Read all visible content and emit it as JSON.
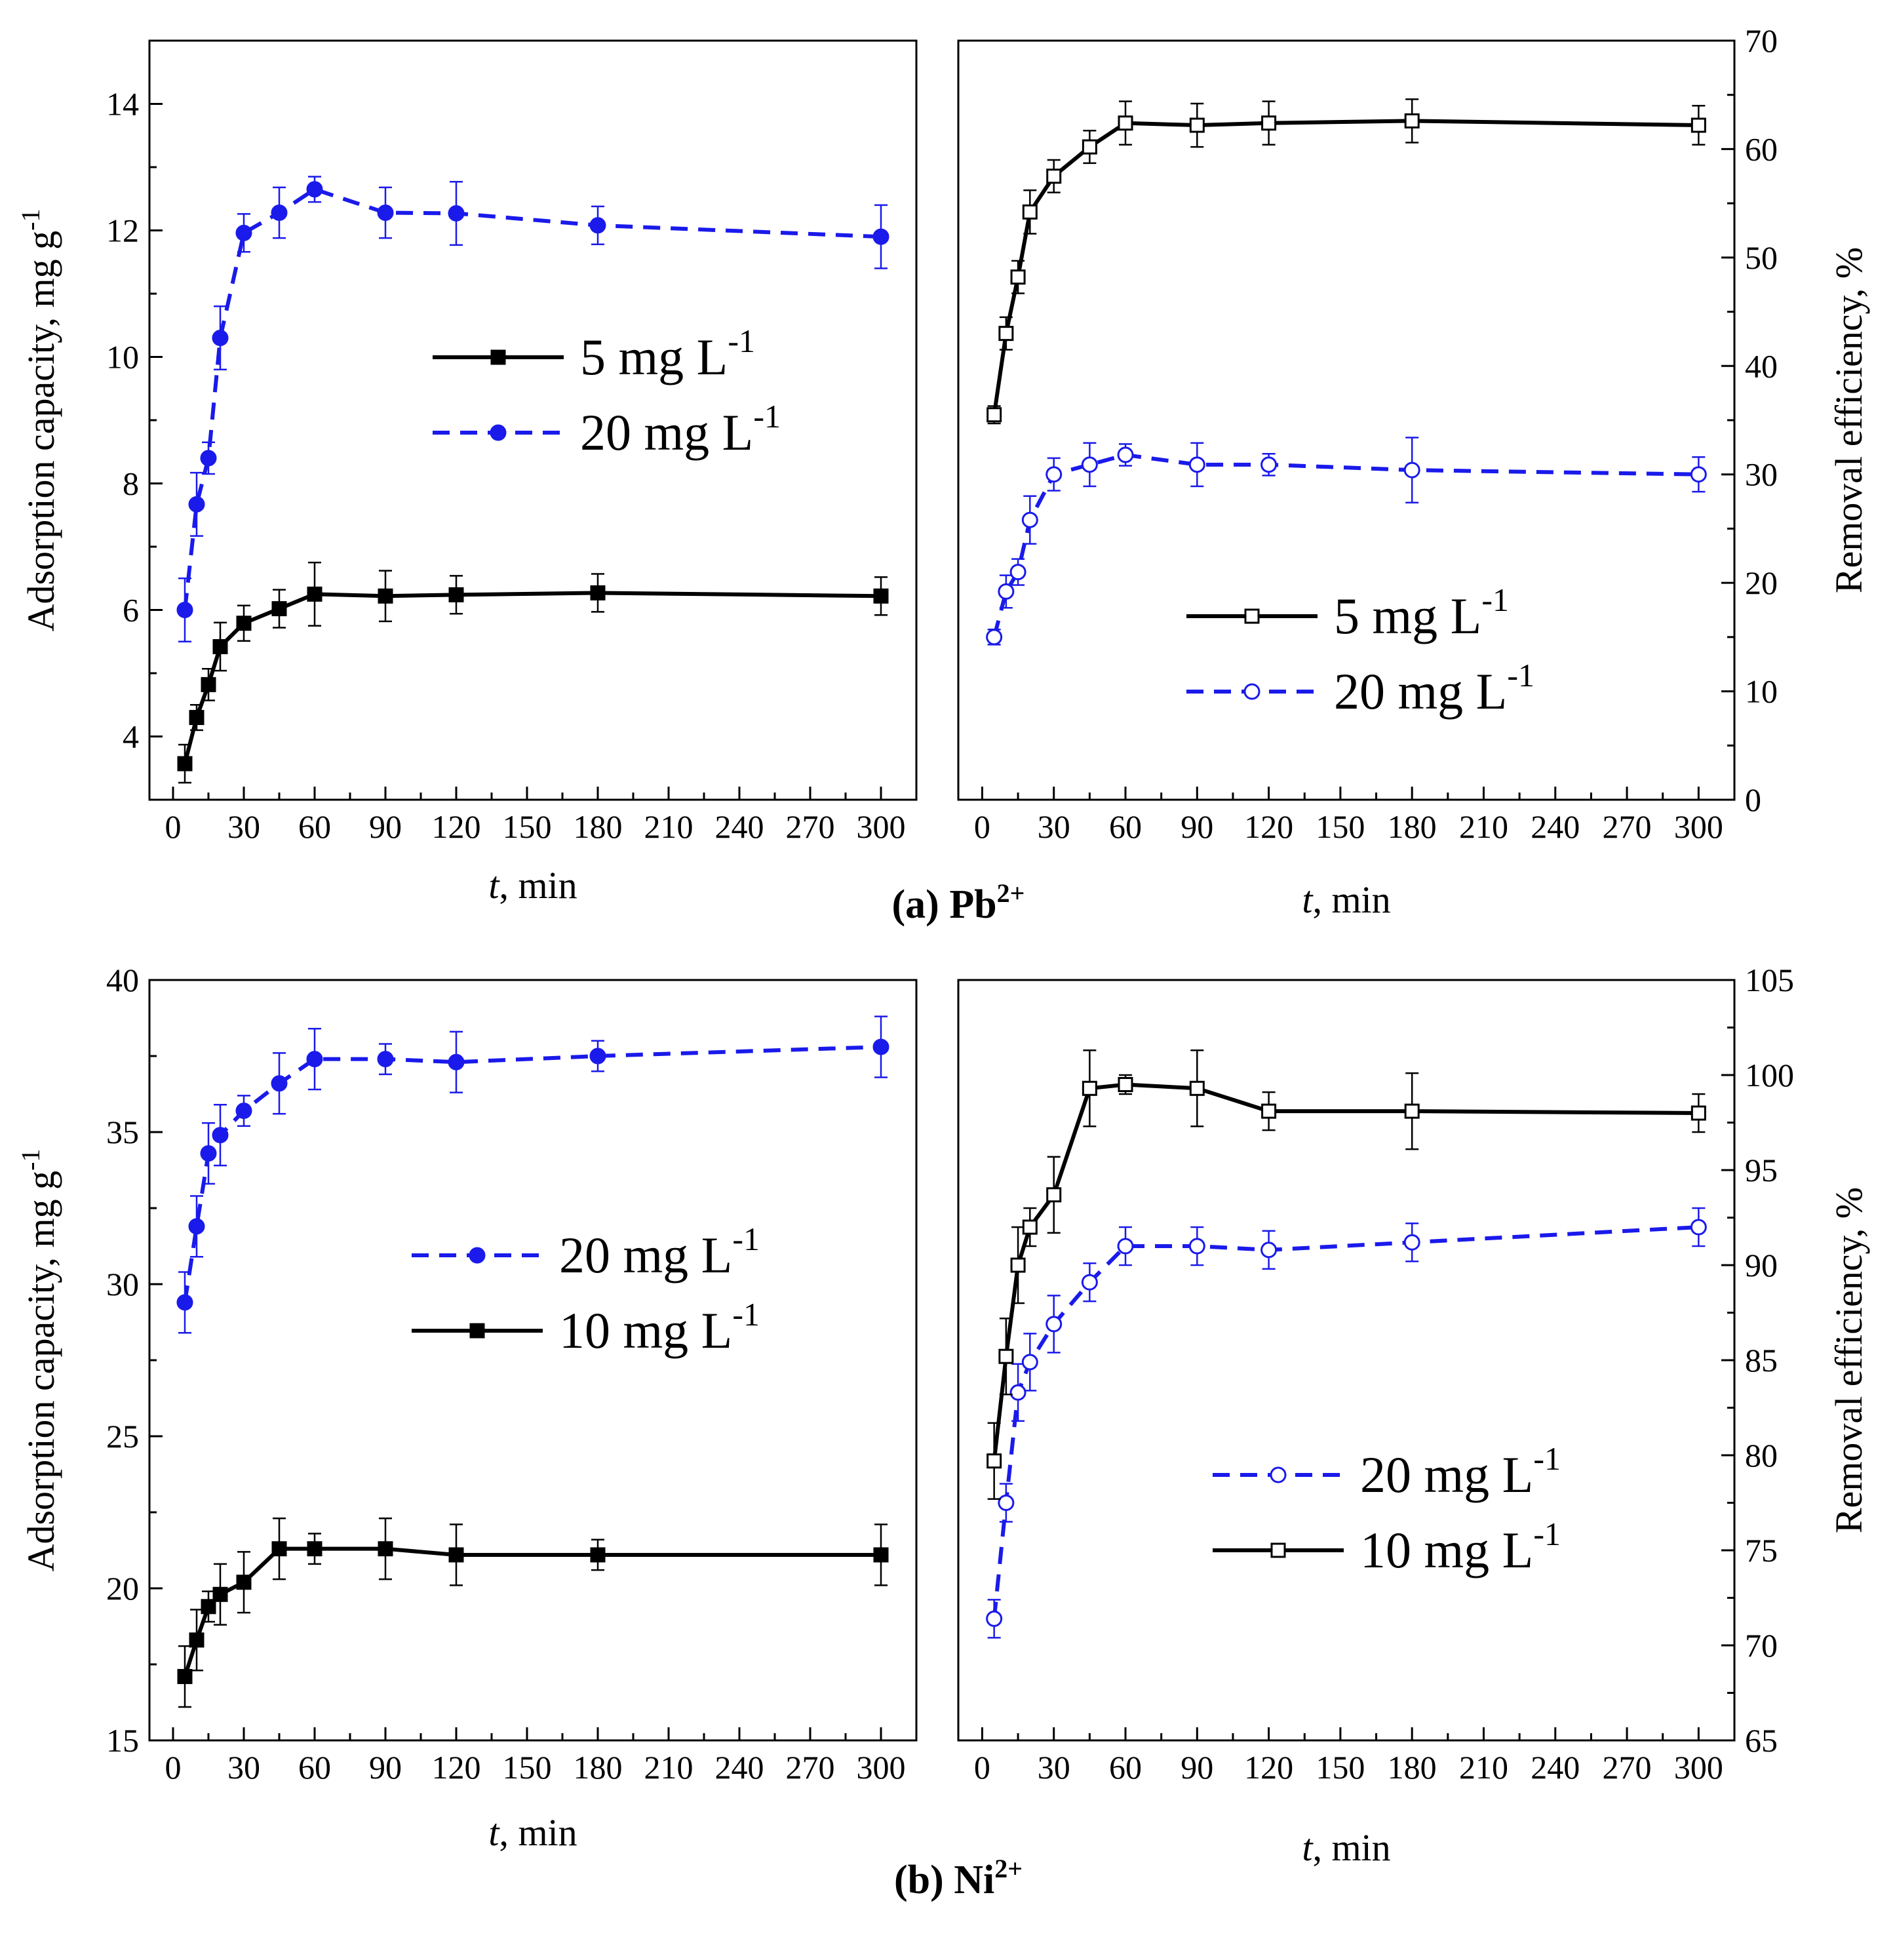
{
  "figure": {
    "captions": [
      {
        "label": "(a)",
        "ion": "Pb",
        "charge": "2+"
      },
      {
        "label": "(b)",
        "ion": "Ni",
        "charge": "2+"
      }
    ],
    "colors": {
      "black": "#000000",
      "blue": "#1a1aeb"
    }
  },
  "chart_data": [
    {
      "id": "pb-capacity",
      "type": "line",
      "row": "a",
      "side": "left",
      "xlabel_italic": "t",
      "xlabel_rest": ", min",
      "ylabel": "Adsorption capacity, mg g",
      "ylabel_sup": "-1",
      "y_axis_side": "left",
      "xlim": [
        -10,
        315
      ],
      "ylim": [
        3,
        15
      ],
      "xticks": [
        0,
        30,
        60,
        90,
        120,
        150,
        180,
        210,
        240,
        270,
        300
      ],
      "yticks": [
        4,
        6,
        8,
        10,
        12,
        14
      ],
      "yticks_minor_step": 1,
      "legend_position": "center-right",
      "series": [
        {
          "name": "5 mg L",
          "sup": "-1",
          "color": "#000000",
          "dash": "solid",
          "marker": "square",
          "filled": true,
          "x": [
            5,
            10,
            15,
            20,
            30,
            45,
            60,
            90,
            120,
            180,
            300
          ],
          "y": [
            3.57,
            4.3,
            4.82,
            5.42,
            5.79,
            6.02,
            6.25,
            6.22,
            6.24,
            6.27,
            6.22
          ],
          "err": [
            0.3,
            0.2,
            0.25,
            0.38,
            0.28,
            0.3,
            0.5,
            0.4,
            0.3,
            0.3,
            0.3
          ]
        },
        {
          "name": "20 mg L",
          "sup": "-1",
          "color": "#1a1aeb",
          "dash": "dashed",
          "marker": "circle",
          "filled": true,
          "x": [
            5,
            10,
            15,
            20,
            30,
            45,
            60,
            90,
            120,
            180,
            300
          ],
          "y": [
            6.0,
            7.67,
            8.4,
            10.3,
            11.96,
            12.28,
            12.65,
            12.28,
            12.27,
            12.08,
            11.9
          ],
          "err": [
            0.5,
            0.5,
            0.25,
            0.5,
            0.3,
            0.4,
            0.2,
            0.4,
            0.5,
            0.3,
            0.5
          ]
        }
      ]
    },
    {
      "id": "pb-removal",
      "type": "line",
      "row": "a",
      "side": "right",
      "xlabel_italic": "t",
      "xlabel_rest": ", min",
      "ylabel": "Removal efficiency, %",
      "ylabel_sup": "",
      "y_axis_side": "right",
      "xlim": [
        -10,
        315
      ],
      "ylim": [
        0,
        70
      ],
      "xticks": [
        0,
        30,
        60,
        90,
        120,
        150,
        180,
        210,
        240,
        270,
        300
      ],
      "yticks": [
        0,
        10,
        20,
        30,
        40,
        50,
        60,
        70
      ],
      "yticks_minor_step": 5,
      "legend_position": "lower-right",
      "series": [
        {
          "name": "5 mg L",
          "sup": "-1",
          "color": "#000000",
          "dash": "solid",
          "marker": "square",
          "filled": false,
          "x": [
            5,
            10,
            15,
            20,
            30,
            45,
            60,
            90,
            120,
            180,
            300
          ],
          "y": [
            35.5,
            43,
            48.2,
            54.2,
            57.5,
            60.2,
            62.4,
            62.2,
            62.4,
            62.6,
            62.2
          ],
          "err": [
            0.8,
            1.5,
            1.5,
            2.0,
            1.5,
            1.5,
            2.0,
            2.0,
            2.0,
            2.0,
            1.8
          ]
        },
        {
          "name": "20 mg L",
          "sup": "-1",
          "color": "#1a1aeb",
          "dash": "dashed",
          "marker": "circle",
          "filled": false,
          "x": [
            5,
            10,
            15,
            20,
            30,
            45,
            60,
            90,
            120,
            180,
            300
          ],
          "y": [
            15,
            19.2,
            21,
            25.8,
            30,
            30.9,
            31.8,
            30.9,
            30.9,
            30.4,
            30
          ],
          "err": [
            0.7,
            1.5,
            1.2,
            2.2,
            1.5,
            2.0,
            1.0,
            2.0,
            1.0,
            3.0,
            1.6
          ]
        }
      ]
    },
    {
      "id": "ni-capacity",
      "type": "line",
      "row": "b",
      "side": "left",
      "xlabel_italic": "t",
      "xlabel_rest": ", min",
      "ylabel": "Adsorption capacity, mg g",
      "ylabel_sup": "-1",
      "y_axis_side": "left",
      "xlim": [
        -10,
        315
      ],
      "ylim": [
        15,
        40
      ],
      "xticks": [
        0,
        30,
        60,
        90,
        120,
        150,
        180,
        210,
        240,
        270,
        300
      ],
      "yticks": [
        15,
        20,
        25,
        30,
        35,
        40
      ],
      "yticks_minor_step": 2.5,
      "legend_position": "center-right",
      "series": [
        {
          "name": "20 mg L",
          "sup": "-1",
          "color": "#1a1aeb",
          "dash": "dashed",
          "marker": "circle",
          "filled": true,
          "x": [
            5,
            10,
            15,
            20,
            30,
            45,
            60,
            90,
            120,
            180,
            300
          ],
          "y": [
            29.4,
            31.9,
            34.3,
            34.9,
            35.7,
            36.6,
            37.4,
            37.4,
            37.3,
            37.5,
            37.8
          ],
          "err": [
            1.0,
            1.0,
            1.0,
            1.0,
            0.5,
            1.0,
            1.0,
            0.5,
            1.0,
            0.5,
            1.0
          ]
        },
        {
          "name": "10 mg L",
          "sup": "-1",
          "color": "#000000",
          "dash": "solid",
          "marker": "square",
          "filled": true,
          "x": [
            5,
            10,
            15,
            20,
            30,
            45,
            60,
            90,
            120,
            180,
            300
          ],
          "y": [
            17.1,
            18.3,
            19.4,
            19.8,
            20.2,
            21.3,
            21.3,
            21.3,
            21.1,
            21.1,
            21.1
          ],
          "err": [
            1.0,
            1.0,
            0.5,
            1.0,
            1.0,
            1.0,
            0.5,
            1.0,
            1.0,
            0.5,
            1.0
          ]
        }
      ]
    },
    {
      "id": "ni-removal",
      "type": "line",
      "row": "b",
      "side": "right",
      "xlabel_italic": "t",
      "xlabel_rest": ", min",
      "ylabel": "Removal efficiency, %",
      "ylabel_sup": "",
      "y_axis_side": "right",
      "xlim": [
        -10,
        315
      ],
      "ylim": [
        65,
        105
      ],
      "xticks": [
        0,
        30,
        60,
        90,
        120,
        150,
        180,
        210,
        240,
        270,
        300
      ],
      "yticks": [
        65,
        70,
        75,
        80,
        85,
        90,
        95,
        100,
        105
      ],
      "yticks_minor_step": 2.5,
      "legend_position": "lower-right",
      "series": [
        {
          "name": "20 mg L",
          "sup": "-1",
          "color": "#1a1aeb",
          "dash": "dashed",
          "marker": "circle",
          "filled": false,
          "x": [
            5,
            10,
            15,
            20,
            30,
            45,
            60,
            90,
            120,
            180,
            300
          ],
          "y": [
            71.4,
            77.5,
            83.3,
            84.9,
            86.9,
            89.1,
            91,
            91,
            90.8,
            91.2,
            92
          ],
          "err": [
            1.0,
            1.0,
            1.5,
            1.5,
            1.5,
            1.0,
            1.0,
            1.0,
            1.0,
            1.0,
            1.0
          ]
        },
        {
          "name": "10 mg L",
          "sup": "-1",
          "color": "#000000",
          "dash": "solid",
          "marker": "square",
          "filled": false,
          "x": [
            5,
            10,
            15,
            20,
            30,
            45,
            60,
            90,
            120,
            180,
            300
          ],
          "y": [
            79.7,
            85.2,
            90,
            92,
            93.7,
            99.3,
            99.5,
            99.3,
            98.1,
            98.1,
            98
          ],
          "err": [
            2.0,
            2.0,
            2.0,
            1.0,
            2.0,
            2.0,
            0.5,
            2.0,
            1.0,
            2.0,
            1.0
          ]
        }
      ]
    }
  ]
}
